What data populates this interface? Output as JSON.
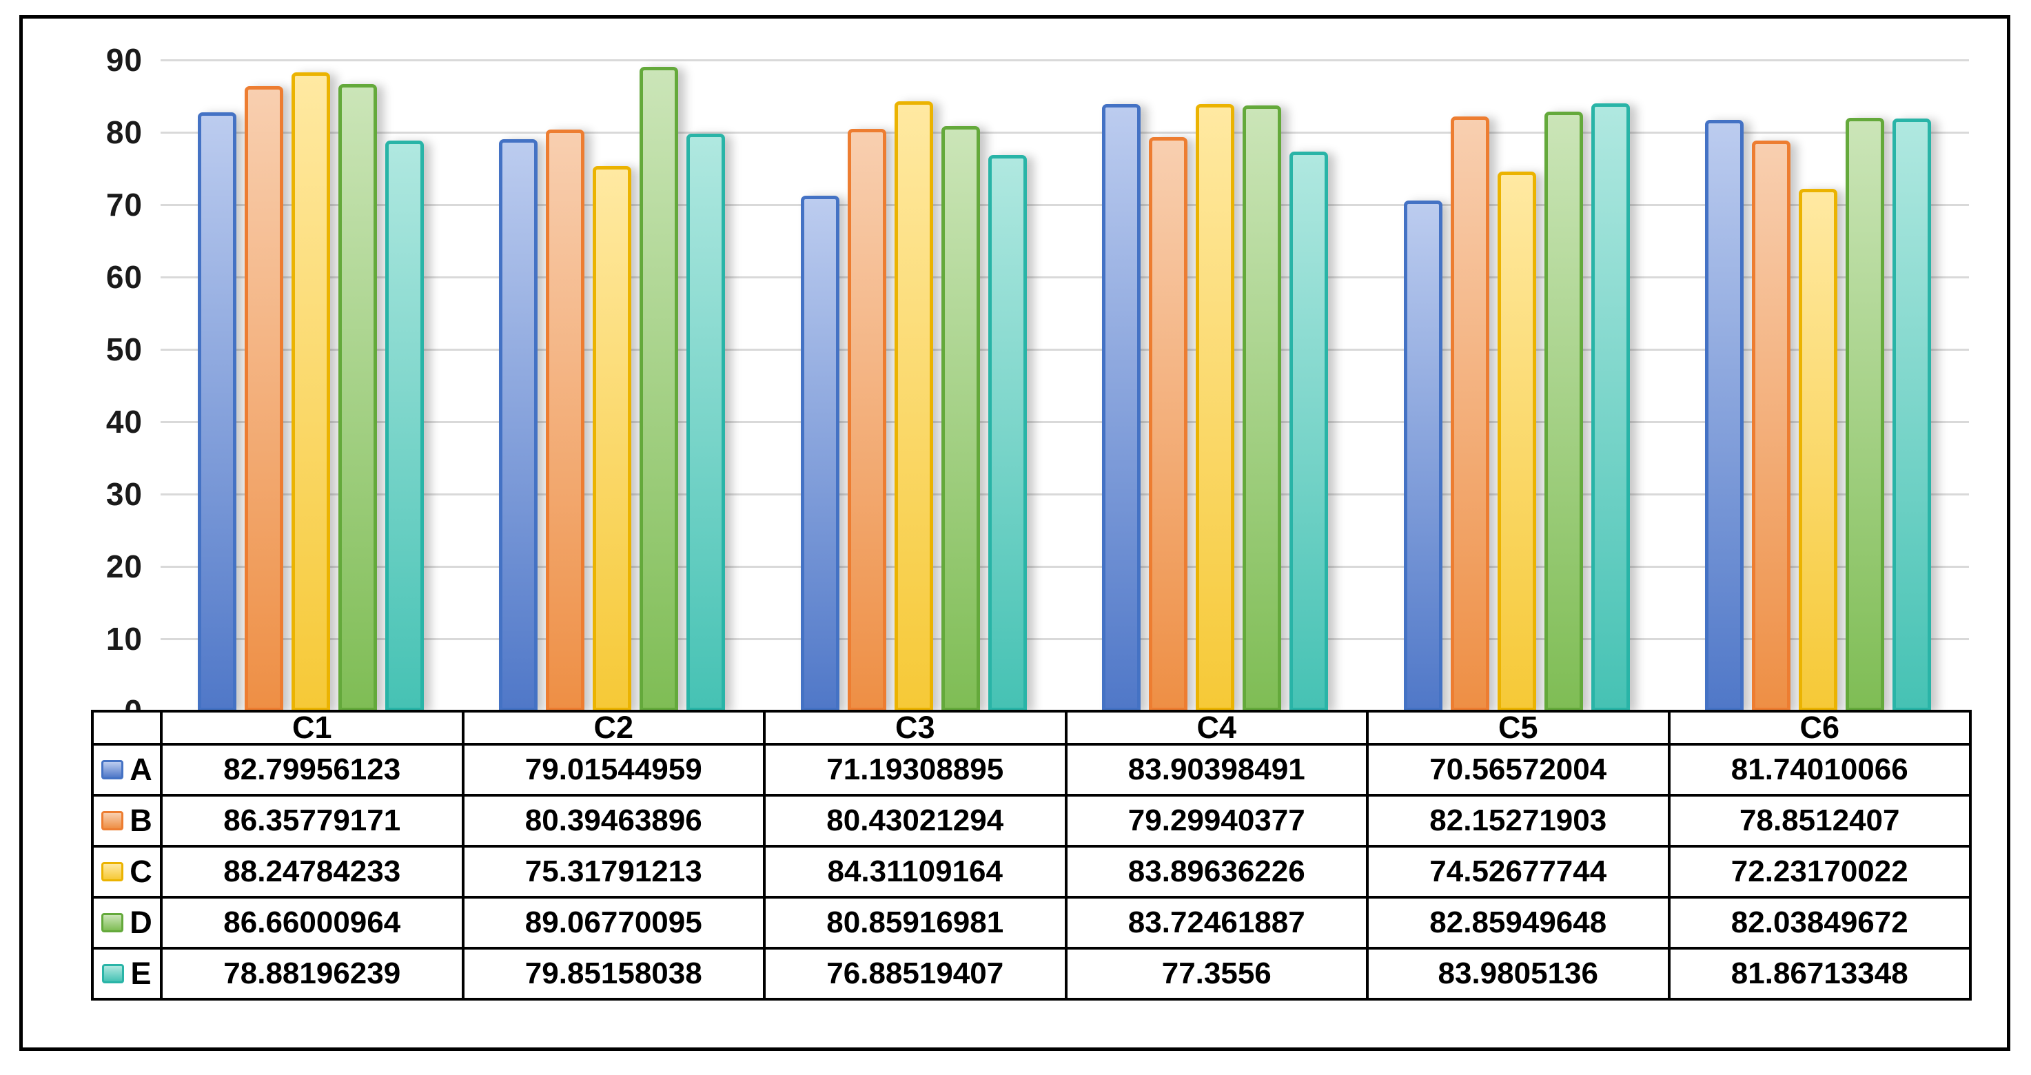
{
  "chart_data": {
    "type": "bar",
    "title": "",
    "xlabel": "",
    "ylabel": "",
    "categories": [
      "C1",
      "C2",
      "C3",
      "C4",
      "C5",
      "C6"
    ],
    "series": [
      {
        "name": "A",
        "values": [
          82.79956123,
          79.01544959,
          71.19308895,
          83.90398491,
          70.56572004,
          81.74010066
        ],
        "border_color": "#4472C4",
        "fill_top": "#BCCCEF",
        "fill_bottom": "#5078C8"
      },
      {
        "name": "B",
        "values": [
          86.35779171,
          80.39463896,
          80.43021294,
          79.29940377,
          82.15271903,
          78.8512407
        ],
        "border_color": "#ED7D31",
        "fill_top": "#F8CFB0",
        "fill_bottom": "#EE8F45"
      },
      {
        "name": "C",
        "values": [
          88.24784233,
          75.31791213,
          84.31109164,
          83.89636226,
          74.52677744,
          72.23170022
        ],
        "border_color": "#EBB301",
        "fill_top": "#FFE9A2",
        "fill_bottom": "#F6C937"
      },
      {
        "name": "D",
        "values": [
          86.66000964,
          89.06770095,
          80.85916981,
          83.72461887,
          82.85949648,
          82.03849672
        ],
        "border_color": "#64A93B",
        "fill_top": "#CBE5B8",
        "fill_bottom": "#7FBD55"
      },
      {
        "name": "E",
        "values": [
          78.88196239,
          79.85158038,
          76.88519407,
          77.3556,
          83.9805136,
          81.86713348
        ],
        "border_color": "#29B4A7",
        "fill_top": "#B0E8E0",
        "fill_bottom": "#46C2B4"
      }
    ],
    "y_ticks": [
      0,
      10,
      20,
      30,
      40,
      50,
      60,
      70,
      80,
      90
    ],
    "ylim": [
      0,
      90
    ],
    "grid": true,
    "gridline_color": "#D9D9D9",
    "legend_position": "table-left",
    "data_table_shown": true
  },
  "colors": {
    "frame_border": "#000000",
    "table_border": "#000000",
    "axis_text": "#1A1A1A",
    "background": "#FFFFFF"
  }
}
